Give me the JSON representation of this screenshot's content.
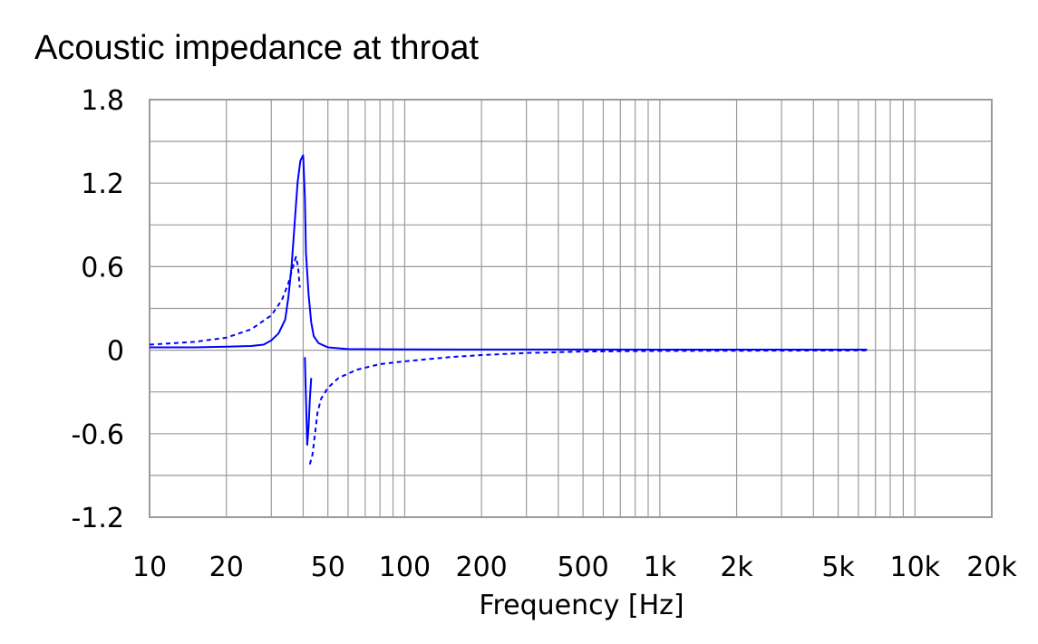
{
  "chart_data": {
    "type": "line",
    "title": "Acoustic impedance at throat",
    "xlabel": "Frequency [Hz]",
    "ylabel": "",
    "x_scale": "log",
    "xlim": [
      10,
      20000
    ],
    "ylim": [
      -1.2,
      1.8
    ],
    "grid": true,
    "x_tick_values": [
      10,
      20,
      50,
      100,
      200,
      500,
      1000,
      2000,
      5000,
      10000,
      20000
    ],
    "x_tick_labels": [
      "10",
      "20",
      "50",
      "100",
      "200",
      "500",
      "1k",
      "2k",
      "5k",
      "10k",
      "20k"
    ],
    "y_tick_values": [
      1.8,
      1.2,
      0.6,
      0,
      -0.6,
      -1.2
    ],
    "y_tick_labels": [
      "1.8",
      "1.2",
      "0.6",
      "0",
      "-0.6",
      "-1.2"
    ],
    "series": [
      {
        "style": "solid",
        "color": "#0000ff",
        "x": [
          10,
          15,
          20,
          25,
          28,
          30,
          32,
          34,
          35,
          36,
          37,
          38,
          39,
          40,
          40.6,
          41,
          42,
          43,
          44,
          46,
          50,
          60,
          100,
          1000,
          6500
        ],
        "y": [
          0.02,
          0.02,
          0.025,
          0.03,
          0.04,
          0.07,
          0.12,
          0.22,
          0.38,
          0.6,
          0.9,
          1.2,
          1.36,
          1.4,
          1.1,
          0.7,
          0.4,
          0.2,
          0.1,
          0.05,
          0.02,
          0.008,
          0.005,
          0.004,
          0.004
        ]
      },
      {
        "style": "solid",
        "color": "#0000ff",
        "x": [
          40.6,
          41.0,
          41.5,
          42.0,
          42.5,
          43.0
        ],
        "y": [
          -0.05,
          -0.35,
          -0.68,
          -0.55,
          -0.35,
          -0.2
        ]
      },
      {
        "style": "dashed",
        "color": "#0000ff",
        "x": [
          10,
          15,
          20,
          25,
          30,
          33,
          35,
          36.5,
          37.5,
          38.2,
          38.8
        ],
        "y": [
          0.04,
          0.06,
          0.09,
          0.15,
          0.25,
          0.36,
          0.48,
          0.6,
          0.67,
          0.6,
          0.45
        ]
      },
      {
        "style": "dashed",
        "color": "#0000ff",
        "x": [
          42.5,
          43.5,
          44.5,
          45.5,
          47,
          50,
          55,
          65,
          80,
          100,
          150,
          200,
          300,
          500,
          1000,
          6500
        ],
        "y": [
          -0.82,
          -0.75,
          -0.6,
          -0.45,
          -0.35,
          -0.27,
          -0.2,
          -0.14,
          -0.1,
          -0.08,
          -0.05,
          -0.035,
          -0.02,
          -0.01,
          -0.005,
          -0.002
        ]
      }
    ]
  }
}
